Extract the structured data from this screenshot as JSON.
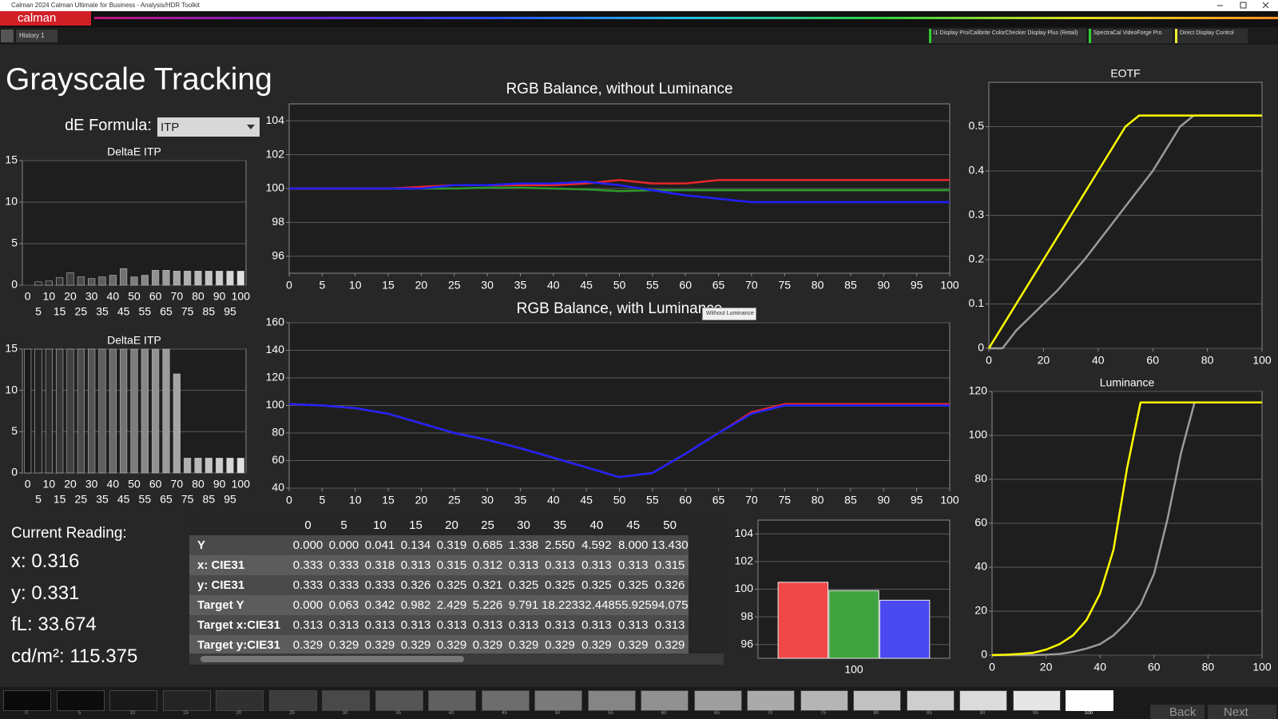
{
  "window": {
    "title": "Calman 2024 Calman Ultimate for Business - Analysis/HDR Toolkit",
    "logo": "calman"
  },
  "toolbar": {
    "tab": "History 1",
    "devices": [
      "i1 Display Pro/Calibrite ColorChecker Display Plus (Retail)",
      "SpectraCal VideoForge Pro",
      "Direct Display Control"
    ]
  },
  "header": {
    "title": "Grayscale Tracking",
    "formula_label": "dE Formula:",
    "formula_value": "ITP"
  },
  "chart_data": [
    {
      "type": "bar",
      "title": "DeltaE ITP",
      "categories": [
        "0",
        "5",
        "10",
        "15",
        "20",
        "25",
        "30",
        "35",
        "40",
        "45",
        "50",
        "55",
        "60",
        "65",
        "70",
        "75",
        "80",
        "85",
        "90",
        "95",
        "100"
      ],
      "values": [
        0,
        0.4,
        0.5,
        0.9,
        1.5,
        1.0,
        0.8,
        1.0,
        1.2,
        2.0,
        1.0,
        1.2,
        1.8,
        1.8,
        1.7,
        1.7,
        1.7,
        1.7,
        1.7,
        1.7,
        1.7
      ],
      "ylim": [
        0,
        15
      ],
      "yticks": [
        0,
        5,
        10,
        15
      ],
      "grid": true
    },
    {
      "type": "bar",
      "title": "DeltaE ITP",
      "categories": [
        "0",
        "5",
        "10",
        "15",
        "20",
        "25",
        "30",
        "35",
        "40",
        "45",
        "50",
        "55",
        "60",
        "65",
        "70",
        "75",
        "80",
        "85",
        "90",
        "95",
        "100"
      ],
      "values": [
        15,
        15,
        15,
        15,
        15,
        15,
        15,
        15,
        15,
        15,
        15,
        15,
        15,
        15,
        12,
        1.8,
        1.8,
        1.8,
        1.8,
        1.8,
        1.8
      ],
      "ylim": [
        0,
        15
      ],
      "yticks": [
        0,
        5,
        10,
        15
      ],
      "grid": true
    },
    {
      "type": "line",
      "title": "RGB Balance, without Luminance",
      "x": [
        0,
        5,
        10,
        15,
        20,
        25,
        30,
        35,
        40,
        45,
        50,
        55,
        60,
        65,
        70,
        75,
        80,
        85,
        90,
        95,
        100
      ],
      "xlim": [
        0,
        100
      ],
      "xticks": [
        0,
        5,
        10,
        15,
        20,
        25,
        30,
        35,
        40,
        45,
        50,
        55,
        60,
        65,
        70,
        75,
        80,
        85,
        90,
        95,
        100
      ],
      "ylim": [
        95,
        105
      ],
      "yticks": [
        96,
        98,
        100,
        102,
        104
      ],
      "grid": true,
      "series": [
        {
          "color": "#2e9a2e",
          "values": [
            100,
            100,
            100,
            100,
            100,
            100,
            100.05,
            100.05,
            100,
            99.95,
            99.85,
            99.9,
            99.9,
            99.9,
            99.9,
            99.9,
            99.9,
            99.9,
            99.9,
            99.9,
            99.9
          ]
        },
        {
          "color": "#e8262a",
          "values": [
            100,
            100,
            100,
            100,
            100.1,
            100.2,
            100.2,
            100.2,
            100.2,
            100.3,
            100.5,
            100.3,
            100.3,
            100.5,
            100.5,
            100.5,
            100.5,
            100.5,
            100.5,
            100.5,
            100.5
          ]
        },
        {
          "color": "#2020ff",
          "values": [
            100,
            100,
            100,
            100,
            100,
            100.2,
            100.2,
            100.3,
            100.3,
            100.4,
            100.2,
            99.9,
            99.6,
            99.4,
            99.2,
            99.2,
            99.2,
            99.2,
            99.2,
            99.2,
            99.2
          ]
        }
      ]
    },
    {
      "type": "line",
      "title": "RGB Balance, with Luminance",
      "x": [
        0,
        5,
        10,
        15,
        20,
        25,
        30,
        35,
        40,
        45,
        50,
        55,
        60,
        65,
        70,
        75,
        80,
        85,
        90,
        95,
        100
      ],
      "xlim": [
        0,
        100
      ],
      "xticks": [
        0,
        5,
        10,
        15,
        20,
        25,
        30,
        35,
        40,
        45,
        50,
        55,
        60,
        65,
        70,
        75,
        80,
        85,
        90,
        95,
        100
      ],
      "ylim": [
        40,
        160
      ],
      "yticks": [
        40,
        60,
        80,
        100,
        120,
        140,
        160
      ],
      "grid": true,
      "series": [
        {
          "color": "#2e9a2e",
          "values": [
            101,
            100,
            98,
            94,
            87,
            80,
            75,
            69,
            62,
            55,
            48,
            51,
            65,
            80,
            94,
            100,
            100,
            100,
            100,
            100,
            100
          ]
        },
        {
          "color": "#e8262a",
          "values": [
            101,
            100,
            98,
            94,
            87,
            80,
            75,
            69,
            62,
            55,
            48,
            51,
            65,
            80,
            95,
            101,
            101,
            101,
            101,
            101,
            101
          ]
        },
        {
          "color": "#2020ff",
          "values": [
            101,
            100,
            98,
            94,
            87,
            80,
            75,
            69,
            62,
            55,
            48,
            51,
            65,
            80,
            94,
            100,
            100,
            100,
            100,
            100,
            100
          ]
        }
      ]
    },
    {
      "type": "line",
      "title": "EOTF",
      "x": [
        0,
        5,
        10,
        15,
        20,
        25,
        30,
        35,
        40,
        45,
        50,
        55,
        60,
        65,
        70,
        75,
        80,
        85,
        90,
        95,
        100
      ],
      "xlim": [
        0,
        100
      ],
      "xticks": [
        0,
        20,
        40,
        60,
        80,
        100
      ],
      "ylim": [
        0,
        0.6
      ],
      "yticks": [
        0,
        0.1,
        0.2,
        0.3,
        0.4,
        0.5
      ],
      "grid": true,
      "series": [
        {
          "color": "#9a9a9a",
          "values": [
            0,
            0,
            0.04,
            0.07,
            0.1,
            0.13,
            0.165,
            0.2,
            0.24,
            0.28,
            0.32,
            0.36,
            0.4,
            0.45,
            0.5,
            0.525,
            0.525,
            0.525,
            0.525,
            0.525,
            0.525
          ]
        },
        {
          "color": "#ffff00",
          "values": [
            0,
            0.05,
            0.1,
            0.15,
            0.2,
            0.25,
            0.3,
            0.35,
            0.4,
            0.45,
            0.5,
            0.525,
            0.525,
            0.525,
            0.525,
            0.525,
            0.525,
            0.525,
            0.525,
            0.525,
            0.525
          ]
        }
      ]
    },
    {
      "type": "line",
      "title": "Luminance",
      "x": [
        0,
        5,
        10,
        15,
        20,
        25,
        30,
        35,
        40,
        45,
        50,
        55,
        60,
        65,
        70,
        75,
        80,
        85,
        90,
        95,
        100
      ],
      "xlim": [
        0,
        100
      ],
      "xticks": [
        0,
        20,
        40,
        60,
        80,
        100
      ],
      "ylim": [
        0,
        120
      ],
      "yticks": [
        0,
        20,
        40,
        60,
        80,
        100,
        120
      ],
      "grid": true,
      "series": [
        {
          "color": "#9a9a9a",
          "values": [
            0,
            0,
            0,
            0,
            0.2,
            0.5,
            1.5,
            3,
            5,
            9,
            15,
            23,
            37,
            62,
            92,
            115,
            115,
            115,
            115,
            115,
            115
          ]
        },
        {
          "color": "#ffff00",
          "values": [
            0,
            0.2,
            0.5,
            1,
            2.5,
            5,
            9,
            16,
            28,
            48,
            85,
            115,
            115,
            115,
            115,
            115,
            115,
            115,
            115,
            115,
            115
          ]
        }
      ]
    },
    {
      "type": "bar",
      "categories": [
        "100"
      ],
      "ylim": [
        95,
        105
      ],
      "yticks": [
        96,
        98,
        100,
        102,
        104
      ],
      "grid": true,
      "series": [
        {
          "color": "#f04848",
          "values": [
            100.5
          ]
        },
        {
          "color": "#3fa33f",
          "values": [
            99.9
          ]
        },
        {
          "color": "#4a4af0",
          "values": [
            99.2
          ]
        }
      ]
    }
  ],
  "tooltip": "Without Luminance",
  "current_reading": {
    "title": "Current Reading:",
    "lines": [
      "x: 0.316",
      "y: 0.331",
      "fL: 33.674",
      "cd/m²: 115.375"
    ]
  },
  "table": {
    "columns": [
      "0",
      "5",
      "10",
      "15",
      "20",
      "25",
      "30",
      "35",
      "40",
      "45",
      "50"
    ],
    "rows": [
      {
        "label": "Y",
        "values": [
          "0.000",
          "0.000",
          "0.041",
          "0.134",
          "0.319",
          "0.685",
          "1.338",
          "2.550",
          "4.592",
          "8.000",
          "13.430"
        ]
      },
      {
        "label": "x: CIE31",
        "values": [
          "0.333",
          "0.333",
          "0.318",
          "0.313",
          "0.315",
          "0.312",
          "0.313",
          "0.313",
          "0.313",
          "0.313",
          "0.315"
        ]
      },
      {
        "label": "y: CIE31",
        "values": [
          "0.333",
          "0.333",
          "0.333",
          "0.326",
          "0.325",
          "0.321",
          "0.325",
          "0.325",
          "0.325",
          "0.325",
          "0.326"
        ]
      },
      {
        "label": "Target Y",
        "values": [
          "0.000",
          "0.063",
          "0.342",
          "0.982",
          "2.429",
          "5.226",
          "9.791",
          "18.223",
          "32.448",
          "55.925",
          "94.075"
        ]
      },
      {
        "label": "Target x:CIE31",
        "values": [
          "0.313",
          "0.313",
          "0.313",
          "0.313",
          "0.313",
          "0.313",
          "0.313",
          "0.313",
          "0.313",
          "0.313",
          "0.313"
        ]
      },
      {
        "label": "Target y:CIE31",
        "values": [
          "0.329",
          "0.329",
          "0.329",
          "0.329",
          "0.329",
          "0.329",
          "0.329",
          "0.329",
          "0.329",
          "0.329",
          "0.329"
        ]
      }
    ]
  },
  "patches": {
    "labels": [
      "0",
      "5",
      "10",
      "15",
      "20",
      "25",
      "30",
      "35",
      "40",
      "45",
      "50",
      "55",
      "60",
      "65",
      "70",
      "75",
      "80",
      "85",
      "90",
      "95",
      "100"
    ]
  },
  "nav": {
    "back": "Back",
    "next": "Next"
  }
}
